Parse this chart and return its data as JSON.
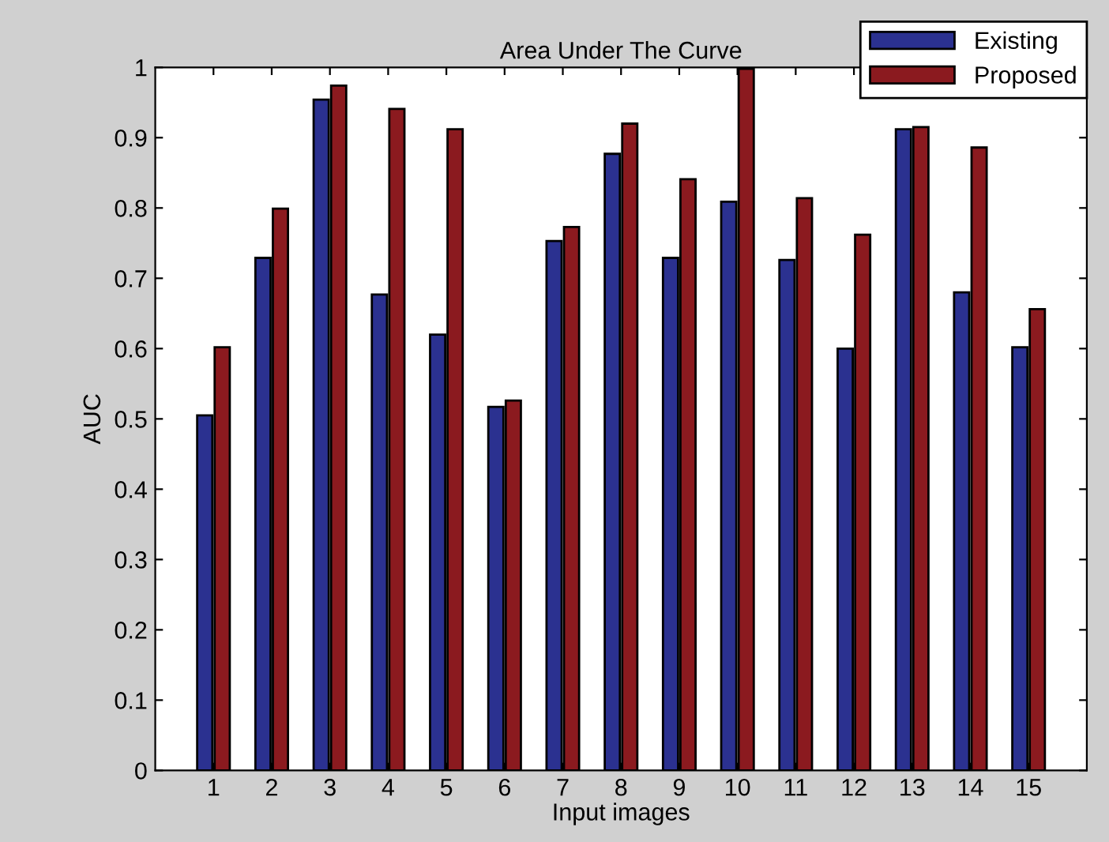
{
  "chart_data": {
    "type": "bar",
    "title": "Area Under The Curve",
    "xlabel": "Input images",
    "ylabel": "AUC",
    "categories": [
      "1",
      "2",
      "3",
      "4",
      "5",
      "6",
      "7",
      "8",
      "9",
      "10",
      "11",
      "12",
      "13",
      "14",
      "15"
    ],
    "series": [
      {
        "name": "Existing",
        "color": "#2b3190",
        "values": [
          0.505,
          0.729,
          0.954,
          0.677,
          0.62,
          0.517,
          0.753,
          0.877,
          0.729,
          0.809,
          0.726,
          0.6,
          0.912,
          0.68,
          0.602
        ]
      },
      {
        "name": "Proposed",
        "color": "#8b1a1f",
        "values": [
          0.602,
          0.799,
          0.974,
          0.941,
          0.912,
          0.526,
          0.773,
          0.92,
          0.841,
          0.998,
          0.814,
          0.762,
          0.915,
          0.886,
          0.656
        ]
      }
    ],
    "ylim": [
      0,
      1
    ],
    "yticks": [
      0,
      0.1,
      0.2,
      0.3,
      0.4,
      0.5,
      0.6,
      0.7,
      0.8,
      0.9,
      1
    ],
    "grid": false,
    "legend": "top right"
  }
}
